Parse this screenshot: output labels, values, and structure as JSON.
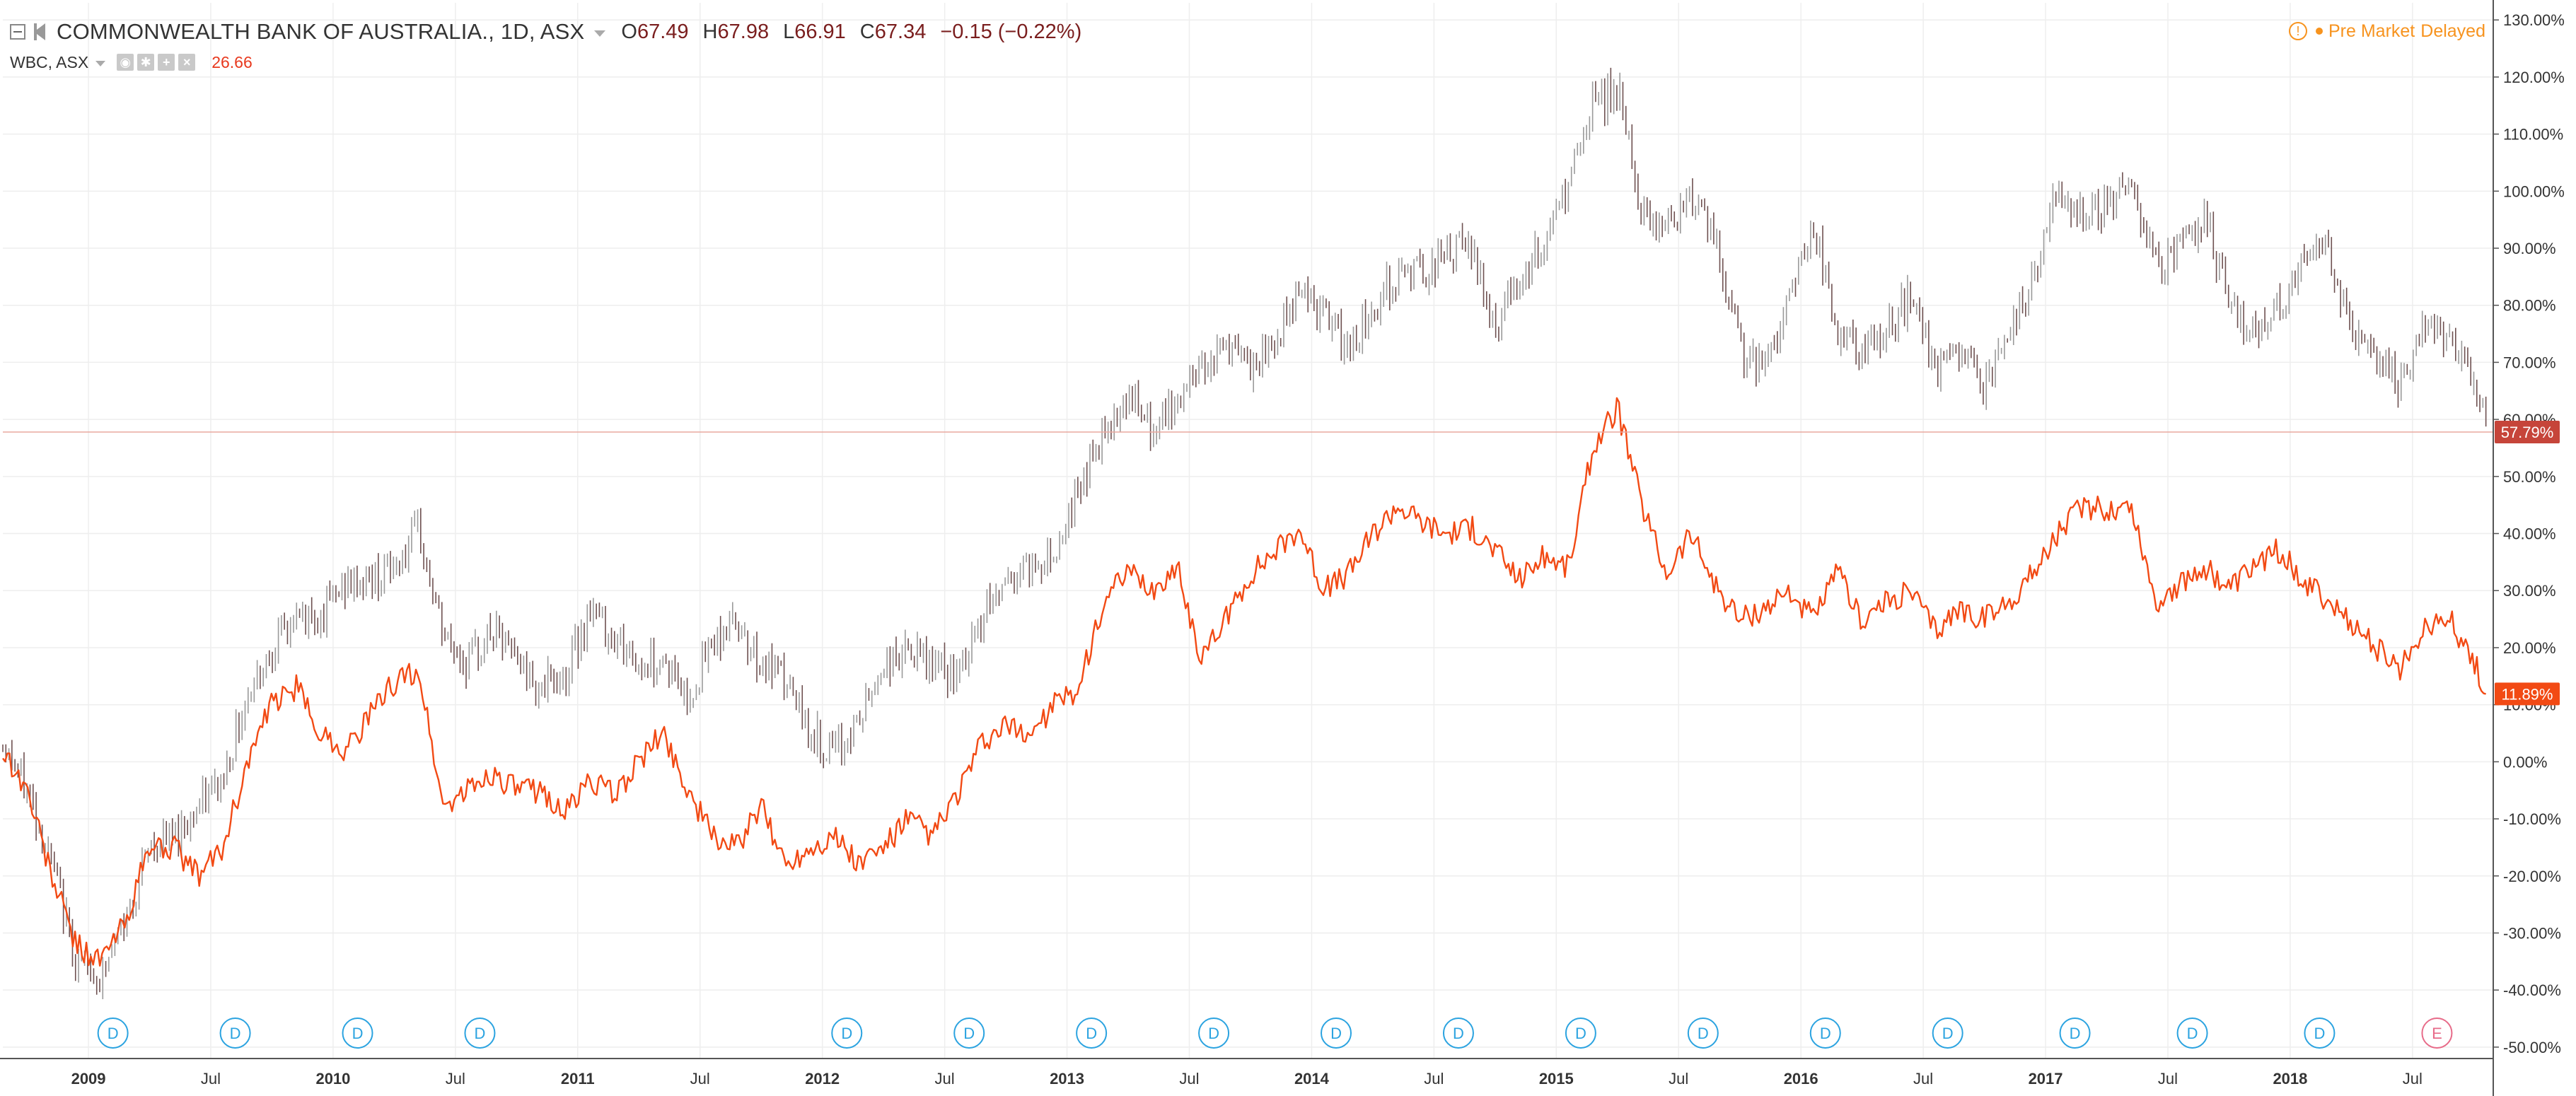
{
  "legend": {
    "title": "COMMONWEALTH BANK OF AUSTRALIA., 1D, ASX",
    "open_label": "O",
    "open": "67.49",
    "high_label": "H",
    "high": "67.98",
    "low_label": "L",
    "low": "66.91",
    "close_label": "C",
    "close": "67.34",
    "change": "−0.15 (−0.22%)",
    "series2_name": "WBC, ASX",
    "series2_value": "26.66"
  },
  "status": {
    "text": "Pre Market",
    "delayed": "Delayed"
  },
  "icons": {
    "collapse": "collapse-icon",
    "flag": "flag-icon",
    "warning": "warning-icon",
    "dot": "status-dot-icon",
    "eye": "eye-icon",
    "settings": "gear-icon",
    "add": "plus-icon",
    "close": "close-icon"
  },
  "colors": {
    "main_series": "#8a8a8a",
    "up": "#9a9a9a",
    "down": "#6e5050",
    "compare_series": "#f24a14",
    "main_label": "#c6453a",
    "compare_label": "#f24a14",
    "dividend": "#2ba3e0",
    "earnings": "#e76b89",
    "premarket": "#f7931e",
    "grid": "#eeeeee"
  },
  "chart_data": {
    "type": "line",
    "ylabel": "",
    "y_scale": "percent",
    "ylim": [
      -52,
      133
    ],
    "y_ticks": [
      130,
      120,
      110,
      100,
      90,
      80,
      70,
      60,
      50,
      40,
      30,
      20,
      10,
      0,
      -10,
      -20,
      -30,
      -40,
      -50
    ],
    "y_tick_labels": [
      "130.00%",
      "120.00%",
      "110.00%",
      "100.00%",
      "90.00%",
      "80.00%",
      "70.00%",
      "60.00%",
      "50.00%",
      "40.00%",
      "30.00%",
      "20.00%",
      "10.00%",
      "0.00%",
      "-10.00%",
      "-20.00%",
      "-30.00%",
      "-40.00%",
      "-50.00%"
    ],
    "xlim": [
      2008.65,
      2018.83
    ],
    "x_ticks": [
      2009,
      2009.5,
      2010,
      2010.5,
      2011,
      2011.5,
      2012,
      2012.5,
      2013,
      2013.5,
      2014,
      2014.5,
      2015,
      2015.5,
      2016,
      2016.5,
      2017,
      2017.5,
      2018,
      2018.5
    ],
    "x_tick_labels": [
      "2009",
      "Jul",
      "2010",
      "Jul",
      "2011",
      "Jul",
      "2012",
      "Jul",
      "2013",
      "Jul",
      "2014",
      "Jul",
      "2015",
      "Jul",
      "2016",
      "Jul",
      "2017",
      "Jul",
      "2018",
      "Jul"
    ],
    "grid": true,
    "series": [
      {
        "name": "COMMONWEALTH BANK OF AUSTRALIA., 1D, ASX",
        "style": "candles",
        "last_label": "57.79%",
        "last_value": 57.79,
        "x": [
          2008.65,
          2008.75,
          2008.85,
          2008.95,
          2009.05,
          2009.15,
          2009.25,
          2009.35,
          2009.45,
          2009.55,
          2009.65,
          2009.75,
          2009.85,
          2009.95,
          2010.05,
          2010.15,
          2010.25,
          2010.35,
          2010.45,
          2010.55,
          2010.65,
          2010.75,
          2010.85,
          2010.95,
          2011.05,
          2011.15,
          2011.25,
          2011.35,
          2011.45,
          2011.55,
          2011.65,
          2011.75,
          2011.85,
          2011.95,
          2012.05,
          2012.15,
          2012.25,
          2012.35,
          2012.45,
          2012.55,
          2012.65,
          2012.75,
          2012.85,
          2012.95,
          2013.05,
          2013.15,
          2013.25,
          2013.35,
          2013.45,
          2013.55,
          2013.65,
          2013.75,
          2013.85,
          2013.95,
          2014.05,
          2014.15,
          2014.25,
          2014.35,
          2014.45,
          2014.55,
          2014.65,
          2014.75,
          2014.85,
          2014.95,
          2015.05,
          2015.15,
          2015.25,
          2015.35,
          2015.45,
          2015.55,
          2015.65,
          2015.75,
          2015.85,
          2015.95,
          2016.05,
          2016.15,
          2016.25,
          2016.35,
          2016.45,
          2016.55,
          2016.65,
          2016.75,
          2016.85,
          2016.95,
          2017.05,
          2017.15,
          2017.25,
          2017.35,
          2017.45,
          2017.55,
          2017.65,
          2017.75,
          2017.85,
          2017.95,
          2018.05,
          2018.15,
          2018.25,
          2018.35,
          2018.45,
          2018.55,
          2018.65,
          2018.75,
          2018.8
        ],
        "values": [
          3,
          -5,
          -18,
          -35,
          -38,
          -28,
          -15,
          -13,
          -8,
          -3,
          12,
          20,
          25,
          26,
          31,
          32,
          34,
          40,
          22,
          17,
          23,
          18,
          13,
          15,
          27,
          22,
          17,
          18,
          11,
          21,
          25,
          17,
          14,
          5,
          1,
          7,
          17,
          19,
          17,
          14,
          25,
          32,
          34,
          37,
          48,
          58,
          65,
          57,
          63,
          70,
          73,
          68,
          73,
          84,
          78,
          72,
          80,
          85,
          86,
          89,
          90,
          76,
          85,
          90,
          101,
          115,
          118,
          96,
          94,
          100,
          90,
          73,
          68,
          82,
          94,
          75,
          71,
          75,
          82,
          68,
          72,
          66,
          75,
          85,
          100,
          96,
          98,
          102,
          87,
          90,
          95,
          82,
          75,
          80,
          86,
          90,
          76,
          71,
          65,
          76,
          73,
          66,
          57.79
        ]
      },
      {
        "name": "WBC, ASX",
        "style": "line",
        "last_label": "11.89%",
        "last_value": 11.89,
        "x": [
          2008.65,
          2008.75,
          2008.85,
          2008.95,
          2009.05,
          2009.15,
          2009.25,
          2009.35,
          2009.45,
          2009.55,
          2009.65,
          2009.75,
          2009.85,
          2009.95,
          2010.05,
          2010.15,
          2010.25,
          2010.35,
          2010.45,
          2010.55,
          2010.65,
          2010.75,
          2010.85,
          2010.95,
          2011.05,
          2011.15,
          2011.25,
          2011.35,
          2011.45,
          2011.55,
          2011.65,
          2011.75,
          2011.85,
          2011.95,
          2012.05,
          2012.15,
          2012.25,
          2012.35,
          2012.45,
          2012.55,
          2012.65,
          2012.75,
          2012.85,
          2012.95,
          2013.05,
          2013.15,
          2013.25,
          2013.35,
          2013.45,
          2013.55,
          2013.65,
          2013.75,
          2013.85,
          2013.95,
          2014.05,
          2014.15,
          2014.25,
          2014.35,
          2014.45,
          2014.55,
          2014.65,
          2014.75,
          2014.85,
          2014.95,
          2015.05,
          2015.15,
          2015.25,
          2015.35,
          2015.45,
          2015.55,
          2015.65,
          2015.75,
          2015.85,
          2015.95,
          2016.05,
          2016.15,
          2016.25,
          2016.35,
          2016.45,
          2016.55,
          2016.65,
          2016.75,
          2016.85,
          2016.95,
          2017.05,
          2017.15,
          2017.25,
          2017.35,
          2017.45,
          2017.55,
          2017.65,
          2017.75,
          2017.85,
          2017.95,
          2018.05,
          2018.15,
          2018.25,
          2018.35,
          2018.45,
          2018.55,
          2018.65,
          2018.75,
          2018.8
        ],
        "values": [
          2,
          -5,
          -20,
          -32,
          -35,
          -28,
          -15,
          -15,
          -20,
          -15,
          0,
          10,
          13,
          5,
          2,
          8,
          14,
          16,
          -8,
          -5,
          -2,
          -5,
          -5,
          -9,
          -3,
          -6,
          0,
          5,
          -5,
          -13,
          -15,
          -8,
          -18,
          -15,
          -13,
          -18,
          -15,
          -10,
          -13,
          -6,
          3,
          6,
          5,
          10,
          13,
          28,
          33,
          30,
          34,
          18,
          25,
          33,
          37,
          41,
          30,
          33,
          40,
          45,
          42,
          40,
          41,
          37,
          32,
          36,
          34,
          55,
          62,
          45,
          33,
          40,
          31,
          25,
          27,
          30,
          25,
          33,
          25,
          28,
          30,
          23,
          27,
          25,
          28,
          33,
          40,
          45,
          44,
          45,
          28,
          31,
          34,
          30,
          34,
          37,
          32,
          28,
          24,
          20,
          16,
          24,
          25,
          18,
          11.89
        ]
      }
    ],
    "events": {
      "dividend_label": "D",
      "earnings_label": "E",
      "dividends_x": [
        2009.1,
        2009.6,
        2010.1,
        2010.6,
        2012.1,
        2012.6,
        2013.1,
        2013.6,
        2014.1,
        2014.6,
        2015.1,
        2015.6,
        2016.1,
        2016.6,
        2017.12,
        2017.6,
        2018.12
      ],
      "earnings_x": [
        2018.6
      ]
    }
  }
}
